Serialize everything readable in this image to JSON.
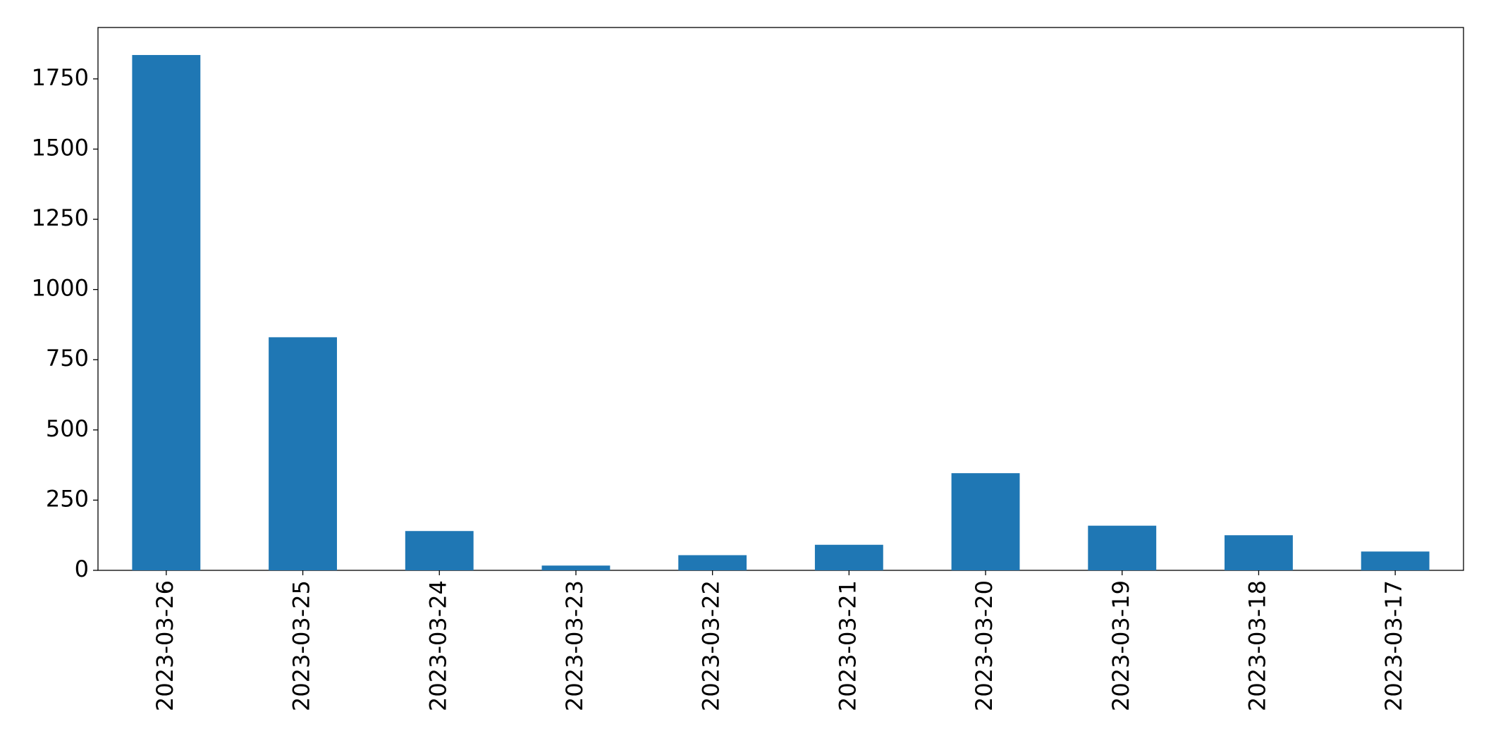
{
  "chart_data": {
    "type": "bar",
    "categories": [
      "2023-03-26",
      "2023-03-25",
      "2023-03-24",
      "2023-03-23",
      "2023-03-22",
      "2023-03-21",
      "2023-03-20",
      "2023-03-19",
      "2023-03-18",
      "2023-03-17"
    ],
    "values": [
      1835,
      830,
      140,
      17,
      54,
      91,
      346,
      159,
      125,
      67
    ],
    "color": "#1f77b4",
    "ylim": [
      0,
      1933
    ],
    "yticks": [
      0,
      250,
      500,
      750,
      1000,
      1250,
      1500,
      1750
    ],
    "grid": false
  }
}
